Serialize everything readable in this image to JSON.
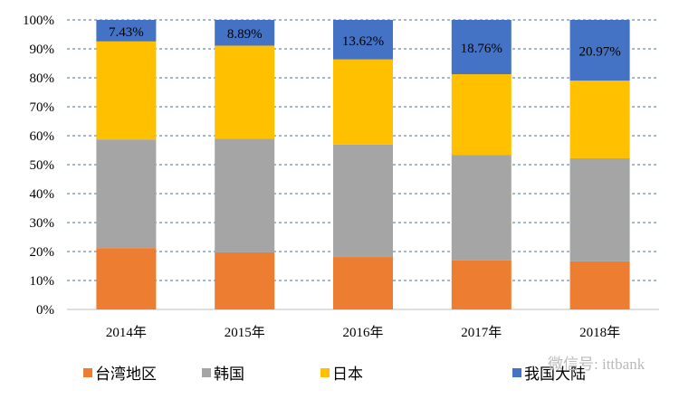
{
  "chart_data": {
    "type": "bar",
    "stacked": true,
    "percent": true,
    "title": "",
    "xlabel": "",
    "ylabel": "",
    "ylim": [
      0,
      100
    ],
    "yticks": [
      "0%",
      "10%",
      "20%",
      "30%",
      "40%",
      "50%",
      "60%",
      "70%",
      "80%",
      "90%",
      "100%"
    ],
    "categories": [
      "2014年",
      "2015年",
      "2016年",
      "2017年",
      "2018年"
    ],
    "series": [
      {
        "name": "台湾地区",
        "color": "#ED7D31",
        "values": [
          21.2,
          19.7,
          18.1,
          16.9,
          16.6
        ]
      },
      {
        "name": "韩国",
        "color": "#A5A5A5",
        "values": [
          37.5,
          39.3,
          38.8,
          36.5,
          35.6
        ]
      },
      {
        "name": "日本",
        "color": "#FFC000",
        "values": [
          33.87,
          32.11,
          29.48,
          27.84,
          26.83
        ]
      },
      {
        "name": "我国大陆",
        "color": "#4472C4",
        "values": [
          7.43,
          8.89,
          13.62,
          18.76,
          20.97
        ]
      }
    ],
    "data_labels": [
      "7.43%",
      "8.89%",
      "13.62%",
      "18.76%",
      "20.97%"
    ],
    "grid": true,
    "legend_position": "bottom"
  },
  "watermark": "微信号: ittbank"
}
